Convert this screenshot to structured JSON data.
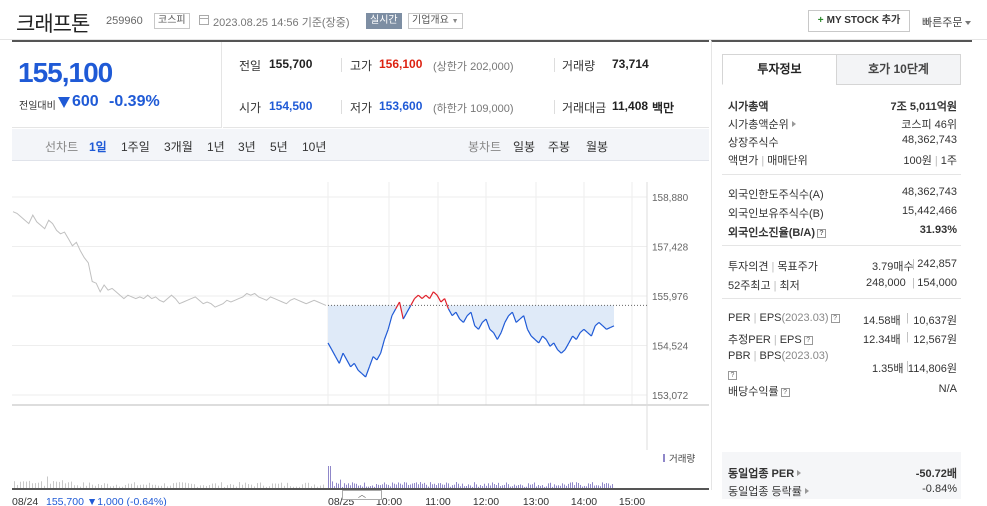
{
  "header": {
    "stock_name": "크래프톤",
    "stock_code": "259960",
    "market": "코스피",
    "datetime": "2023.08.25 14:56 기준(장중)",
    "realtime": "실시간",
    "company_info": "기업개요",
    "my_stock_label": "MY STOCK 추가",
    "quick_order": "빠른주문"
  },
  "price": {
    "current": "155,100",
    "vs_label": "전일대비",
    "change": "600",
    "change_pct": "-0.39%"
  },
  "info": {
    "prev_label": "전일",
    "prev_value": "155,700",
    "high_label": "고가",
    "high_value": "156,100",
    "upper_limit": "(상한가 202,000)",
    "volume_label": "거래량",
    "volume_value": "73,714",
    "open_label": "시가",
    "open_value": "154,500",
    "low_label": "저가",
    "low_value": "153,600",
    "lower_limit": "(하한가 109,000)",
    "amount_label": "거래대금",
    "amount_value": "11,408",
    "amount_unit": "백만"
  },
  "period_bar": {
    "line_label": "선차트",
    "periods": [
      "1일",
      "1주일",
      "3개월",
      "1년",
      "3년",
      "5년",
      "10년"
    ],
    "active": "1일",
    "candle_label": "봉차트",
    "candles": [
      "일봉",
      "주봉",
      "월봉"
    ]
  },
  "chart_data": {
    "type": "line",
    "y_ticks": [
      "158,880",
      "157,428",
      "155,976",
      "154,524",
      "153,072"
    ],
    "ylim": [
      153072,
      158880
    ],
    "x_ticks": [
      "08/25",
      "10:00",
      "11:00",
      "12:00",
      "13:00",
      "14:00",
      "15:00"
    ],
    "prev_day_label": "08/24",
    "prev_close": 155700,
    "prev_day_summary": "155,700 ▼1,000 (-0.64%)",
    "volume_legend": "거래량",
    "colors": {
      "today": "#1f5ad6",
      "above_prev": "#e0202a",
      "prev_day": "#c0c0c0",
      "fill": "#dfeaf8"
    },
    "series": [
      {
        "label": "prev_day",
        "values": [
          158450,
          158400,
          158300,
          158200,
          158100,
          158350,
          158150,
          158050,
          157950,
          158200,
          158100,
          157900,
          157800,
          157850,
          157650,
          157450,
          157550,
          157300,
          157100,
          156950,
          156400,
          156350,
          156100,
          156300,
          156150,
          156200,
          156100,
          156000,
          155900,
          156000,
          155950,
          155900,
          155950,
          155900,
          156000,
          155900,
          155950,
          155850,
          155800,
          155900,
          156000,
          155900,
          155750,
          155800,
          155850,
          155900,
          155950,
          155850,
          155750,
          155800,
          155750,
          155650,
          155700,
          155750,
          155850,
          155800,
          155850,
          155900,
          155950,
          156050,
          156000,
          156050,
          155950,
          155900,
          155850,
          155950,
          155900,
          155850,
          155800,
          155750,
          155850,
          155900,
          155850,
          155800,
          155750,
          155800,
          155850,
          155800,
          155750,
          155700
        ]
      },
      {
        "label": "today",
        "values": [
          154600,
          154400,
          154200,
          154000,
          154300,
          154100,
          153900,
          154000,
          153800,
          153700,
          153600,
          153900,
          154200,
          154100,
          154300,
          154700,
          155000,
          155400,
          155600,
          155800,
          155300,
          155500,
          155700,
          155900,
          156000,
          155900,
          156000,
          155900,
          156100,
          156000,
          155800,
          155900,
          155600,
          155400,
          155500,
          155300,
          155200,
          155400,
          155500,
          155100,
          155000,
          155200,
          155300,
          155000,
          154900,
          154700,
          154900,
          155200,
          155400,
          155500,
          155200,
          155300,
          155400,
          155000,
          154800,
          154700,
          154600,
          154800,
          154700,
          154500,
          154600,
          154400,
          154300,
          154400,
          154600,
          154800,
          154700,
          154900,
          155000,
          154900,
          154800,
          155100,
          155200,
          155100,
          155000,
          155050,
          155100
        ]
      }
    ]
  },
  "right_panel": {
    "tab_invest": "투자정보",
    "tab_orderbook": "호가 10단계",
    "market_cap_label": "시가총액",
    "market_cap_value": "7조 5,011억원",
    "cap_rank_label": "시가총액순위",
    "cap_rank_value": "코스피 46위",
    "shares_label": "상장주식수",
    "shares_value": "48,362,743",
    "par_label": "액면가",
    "unit_label": "매매단위",
    "par_value": "100원",
    "unit_value": "1주",
    "foreign_limit_label": "외국인한도주식수(A)",
    "foreign_limit_value": "48,362,743",
    "foreign_hold_label": "외국인보유주식수(B)",
    "foreign_hold_value": "15,442,466",
    "foreign_ratio_label": "외국인소진율(B/A)",
    "foreign_ratio_value": "31.93%",
    "opinion_label": "투자의견",
    "target_label": "목표주가",
    "opinion_value": "3.79매수",
    "target_value": "242,857",
    "week52_label": "52주최고",
    "low_label": "최저",
    "week52_high": "248,000",
    "week52_low": "154,000",
    "per_label": "PER",
    "eps_label": "EPS",
    "eps_year": "(2023.03)",
    "per_value": "14.58배",
    "eps_value": "10,637원",
    "est_per_label": "추정PER",
    "est_eps_label": "EPS",
    "est_per_value": "12.34배",
    "est_eps_value": "12,567원",
    "pbr_label": "PBR",
    "bps_label": "BPS",
    "bps_year": "(2023.03)",
    "pbr_value": "1.35배",
    "bps_value": "114,806원",
    "div_label": "배당수익률",
    "div_value": "N/A",
    "peer_per_label": "동일업종 PER",
    "peer_per_value": "-50.72배",
    "peer_rate_label": "동일업종 등락률",
    "peer_rate_value": "-0.84%"
  }
}
